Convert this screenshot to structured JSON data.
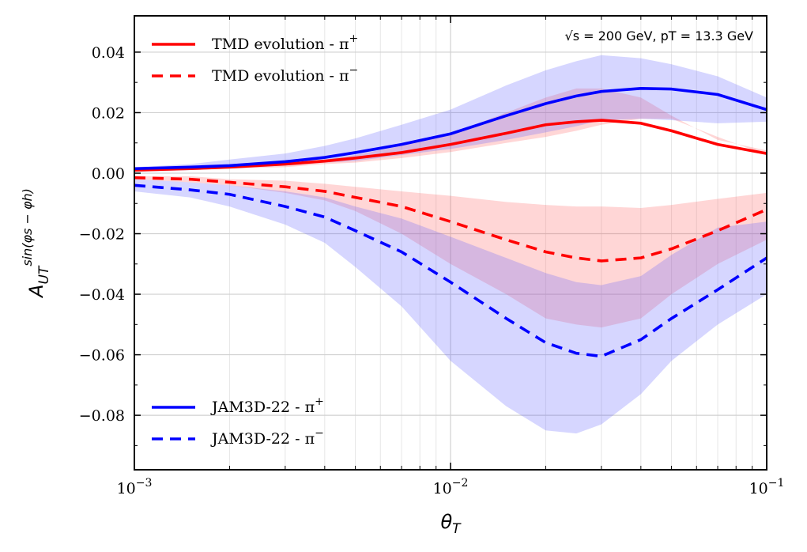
{
  "chart_data": {
    "type": "line",
    "xscale": "log",
    "xlim": [
      0.001,
      0.1
    ],
    "ylim": [
      -0.098,
      0.052
    ],
    "xlabel": "θ_T",
    "ylabel": "A_UT^{sin(φs − φh)}",
    "ylabel_main": "A",
    "ylabel_sub": "UT",
    "ylabel_sup": "sin(φs − φh)",
    "xlabel_main": "θ",
    "xlabel_sub": "T",
    "annotation": "√s = 200 GeV, pT = 13.3 GeV",
    "grid": true,
    "x_ticks": [
      {
        "value": 0.001,
        "base": "10",
        "exp": "−3"
      },
      {
        "value": 0.01,
        "base": "10",
        "exp": "−2"
      },
      {
        "value": 0.1,
        "base": "10",
        "exp": "−1"
      }
    ],
    "y_ticks": [
      {
        "value": 0.04,
        "label": "0.04"
      },
      {
        "value": 0.02,
        "label": "0.02"
      },
      {
        "value": 0.0,
        "label": "0.00"
      },
      {
        "value": -0.02,
        "label": "−0.02"
      },
      {
        "value": -0.04,
        "label": "−0.04"
      },
      {
        "value": -0.06,
        "label": "−0.06"
      },
      {
        "value": -0.08,
        "label": "−0.08"
      }
    ],
    "legends": [
      {
        "position": "upper-left",
        "entries": [
          "TMD evolution - π+",
          "TMD evolution - π−"
        ]
      },
      {
        "position": "lower-left",
        "entries": [
          "JAM3D-22 - π+",
          "JAM3D-22 - π−"
        ]
      }
    ],
    "series": [
      {
        "name": "TMD evolution - π+",
        "legend_main": "TMD evolution - π",
        "legend_sup": "+",
        "legend_group": 0,
        "color": "#ff0000",
        "dash": false,
        "x": [
          0.001,
          0.0015,
          0.002,
          0.003,
          0.004,
          0.005,
          0.007,
          0.01,
          0.015,
          0.02,
          0.025,
          0.03,
          0.04,
          0.05,
          0.07,
          0.1
        ],
        "y": [
          0.001,
          0.0015,
          0.002,
          0.003,
          0.004,
          0.005,
          0.0068,
          0.0095,
          0.0132,
          0.016,
          0.017,
          0.0175,
          0.0165,
          0.014,
          0.0095,
          0.0065
        ],
        "band_lower": [
          0.0005,
          0.001,
          0.0015,
          0.002,
          0.003,
          0.0035,
          0.005,
          0.007,
          0.01,
          0.012,
          0.014,
          0.016,
          0.018,
          0.018,
          0.012,
          0.006
        ],
        "band_upper": [
          0.0015,
          0.002,
          0.0025,
          0.0035,
          0.0045,
          0.006,
          0.009,
          0.013,
          0.02,
          0.025,
          0.028,
          0.028,
          0.025,
          0.019,
          0.011,
          0.0075
        ]
      },
      {
        "name": "TMD evolution - π−",
        "legend_main": "TMD evolution - π",
        "legend_sup": "−",
        "legend_group": 0,
        "color": "#ff0000",
        "dash": true,
        "x": [
          0.001,
          0.0015,
          0.002,
          0.003,
          0.004,
          0.005,
          0.007,
          0.01,
          0.015,
          0.02,
          0.025,
          0.03,
          0.04,
          0.05,
          0.07,
          0.1
        ],
        "y": [
          -0.0015,
          -0.002,
          -0.003,
          -0.0045,
          -0.006,
          -0.008,
          -0.011,
          -0.016,
          -0.022,
          -0.026,
          -0.028,
          -0.029,
          -0.028,
          -0.025,
          -0.019,
          -0.012
        ],
        "band_lower": [
          -0.002,
          -0.003,
          -0.004,
          -0.0065,
          -0.009,
          -0.0125,
          -0.02,
          -0.03,
          -0.04,
          -0.048,
          -0.05,
          -0.051,
          -0.048,
          -0.04,
          -0.03,
          -0.022
        ],
        "band_upper": [
          -0.001,
          -0.001,
          -0.002,
          -0.0025,
          -0.0035,
          -0.0045,
          -0.006,
          -0.0075,
          -0.0095,
          -0.0105,
          -0.011,
          -0.011,
          -0.0115,
          -0.0105,
          -0.0085,
          -0.0065
        ]
      },
      {
        "name": "JAM3D-22 - π+",
        "legend_main": "JAM3D-22 - π",
        "legend_sup": "+",
        "legend_group": 1,
        "color": "#0000ff",
        "dash": false,
        "x": [
          0.001,
          0.0015,
          0.002,
          0.003,
          0.004,
          0.005,
          0.007,
          0.01,
          0.015,
          0.02,
          0.025,
          0.03,
          0.04,
          0.05,
          0.07,
          0.1
        ],
        "y": [
          0.0015,
          0.002,
          0.0025,
          0.0038,
          0.0052,
          0.0068,
          0.0095,
          0.013,
          0.019,
          0.023,
          0.0255,
          0.027,
          0.028,
          0.0278,
          0.026,
          0.021
        ],
        "band_lower": [
          0.0005,
          0.001,
          0.0015,
          0.0025,
          0.0035,
          0.004,
          0.006,
          0.008,
          0.011,
          0.0135,
          0.0155,
          0.0175,
          0.018,
          0.0175,
          0.0165,
          0.017
        ],
        "band_upper": [
          0.002,
          0.003,
          0.0045,
          0.0065,
          0.009,
          0.0115,
          0.016,
          0.021,
          0.029,
          0.034,
          0.037,
          0.039,
          0.038,
          0.036,
          0.032,
          0.025
        ]
      },
      {
        "name": "JAM3D-22 - π−",
        "legend_main": "JAM3D-22 - π",
        "legend_sup": "−",
        "legend_group": 1,
        "color": "#0000ff",
        "dash": true,
        "x": [
          0.001,
          0.0015,
          0.002,
          0.003,
          0.004,
          0.005,
          0.007,
          0.01,
          0.015,
          0.02,
          0.025,
          0.03,
          0.04,
          0.05,
          0.07,
          0.1
        ],
        "y": [
          -0.004,
          -0.0055,
          -0.007,
          -0.011,
          -0.0145,
          -0.019,
          -0.026,
          -0.036,
          -0.048,
          -0.056,
          -0.0595,
          -0.0605,
          -0.055,
          -0.048,
          -0.0385,
          -0.028
        ],
        "band_lower": [
          -0.006,
          -0.008,
          -0.011,
          -0.017,
          -0.023,
          -0.031,
          -0.044,
          -0.062,
          -0.077,
          -0.085,
          -0.086,
          -0.083,
          -0.073,
          -0.062,
          -0.05,
          -0.04
        ],
        "band_upper": [
          -0.002,
          -0.003,
          -0.004,
          -0.006,
          -0.008,
          -0.011,
          -0.015,
          -0.021,
          -0.028,
          -0.033,
          -0.036,
          -0.037,
          -0.034,
          -0.027,
          -0.018,
          -0.016
        ]
      }
    ]
  }
}
